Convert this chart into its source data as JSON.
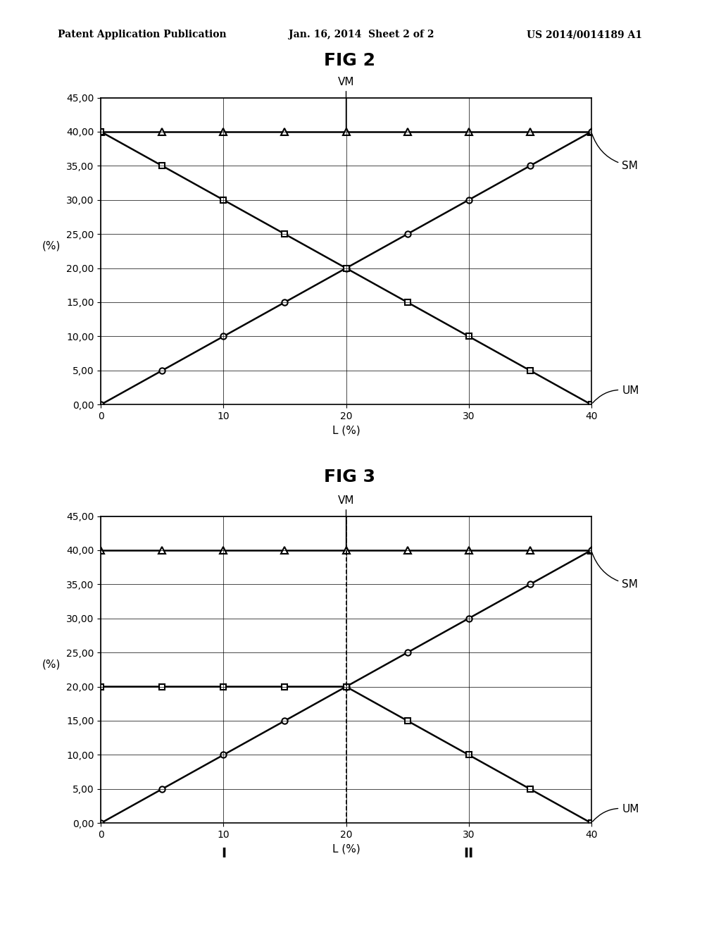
{
  "fig2_title": "FIG 2",
  "fig3_title": "FIG 3",
  "header_left": "Patent Application Publication",
  "header_mid": "Jan. 16, 2014  Sheet 2 of 2",
  "header_right": "US 2014/0014189 A1",
  "fig2": {
    "VM_x": [
      0,
      5,
      10,
      15,
      20,
      25,
      30,
      35,
      40
    ],
    "VM_y": [
      40,
      40,
      40,
      40,
      40,
      40,
      40,
      40,
      40
    ],
    "SM_x": [
      0,
      5,
      10,
      15,
      20,
      25,
      30,
      35,
      40
    ],
    "SM_y": [
      0,
      5,
      10,
      15,
      20,
      25,
      30,
      35,
      40
    ],
    "UM_x": [
      0,
      5,
      10,
      15,
      20,
      25,
      30,
      35,
      40
    ],
    "UM_y": [
      40,
      35,
      30,
      25,
      20,
      15,
      10,
      5,
      0
    ],
    "xlim": [
      0,
      40
    ],
    "ylim": [
      0,
      45
    ],
    "xlabel": "L (%)",
    "ylabel": "(%)",
    "xticks": [
      0,
      10,
      20,
      30,
      40
    ],
    "yticks": [
      0.0,
      5.0,
      10.0,
      15.0,
      20.0,
      25.0,
      30.0,
      35.0,
      40.0,
      45.0
    ],
    "ytick_labels": [
      "0,00",
      "5,00",
      "10,00",
      "15,00",
      "20,00",
      "25,00",
      "30,00",
      "35,00",
      "40,00",
      "45,00"
    ]
  },
  "fig3": {
    "VM_x": [
      0,
      5,
      10,
      15,
      20,
      25,
      30,
      35,
      40
    ],
    "VM_y": [
      40,
      40,
      40,
      40,
      40,
      40,
      40,
      40,
      40
    ],
    "SM_x": [
      0,
      5,
      10,
      15,
      20,
      25,
      30,
      35,
      40
    ],
    "SM_y": [
      0,
      5,
      10,
      15,
      20,
      25,
      30,
      35,
      40
    ],
    "UM_x": [
      0,
      5,
      10,
      15,
      20,
      25,
      30,
      35,
      40
    ],
    "UM_y": [
      20,
      20,
      20,
      20,
      20,
      15,
      10,
      5,
      0
    ],
    "dashed_x": 20,
    "xlim": [
      0,
      40
    ],
    "ylim": [
      0,
      45
    ],
    "xlabel": "L (%)",
    "ylabel": "(%)",
    "xlabel_I": "I",
    "xlabel_II": "II",
    "xticks": [
      0,
      10,
      20,
      30,
      40
    ],
    "yticks": [
      0.0,
      5.0,
      10.0,
      15.0,
      20.0,
      25.0,
      30.0,
      35.0,
      40.0,
      45.0
    ],
    "ytick_labels": [
      "0,00",
      "5,00",
      "10,00",
      "15,00",
      "20,00",
      "25,00",
      "30,00",
      "35,00",
      "40,00",
      "45,00"
    ]
  },
  "background_color": "#ffffff",
  "line_color": "#000000",
  "grid_color": "#000000",
  "font_size_title": 18,
  "font_size_label": 11,
  "font_size_tick": 10,
  "font_size_header": 10
}
